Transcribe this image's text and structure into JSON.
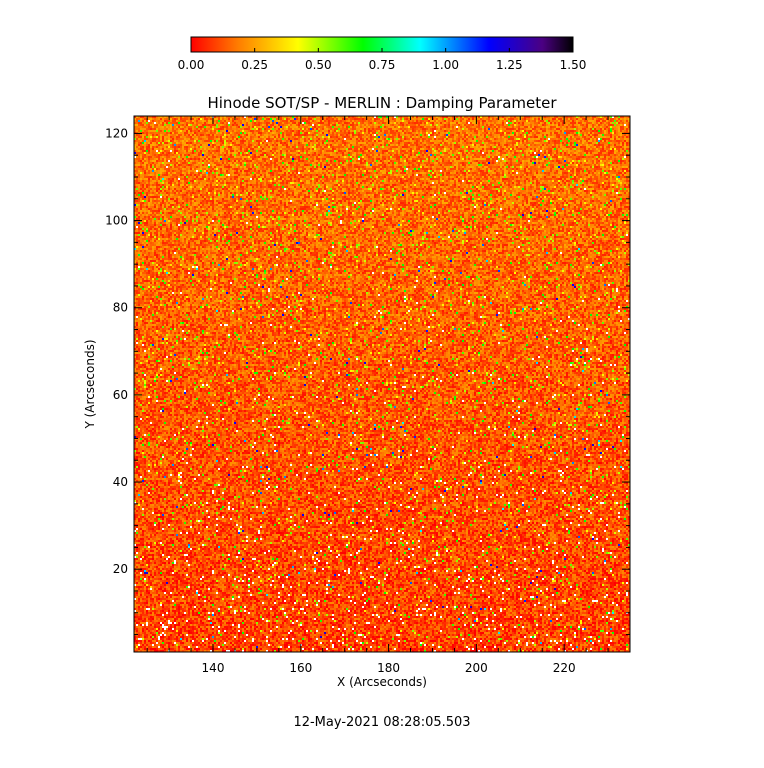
{
  "chart_data": {
    "type": "heatmap",
    "title": "Hinode SOT/SP - MERLIN : Damping Parameter",
    "xlabel": "X (Arcseconds)",
    "ylabel": "Y (Arcseconds)",
    "xlim": [
      122,
      235
    ],
    "ylim": [
      1,
      124
    ],
    "x_ticks": [
      140,
      160,
      180,
      200,
      220
    ],
    "x_tick_labels": [
      "140",
      "160",
      "180",
      "200",
      "220"
    ],
    "y_ticks": [
      20,
      40,
      60,
      80,
      100,
      120
    ],
    "y_tick_labels": [
      "20",
      "40",
      "60",
      "80",
      "100",
      "120"
    ],
    "colorbar": {
      "range": [
        0.0,
        1.5
      ],
      "ticks": [
        0.0,
        0.25,
        0.5,
        0.75,
        1.0,
        1.25,
        1.5
      ],
      "tick_labels": [
        "0.00",
        "0.25",
        "0.50",
        "0.75",
        "1.00",
        "1.25",
        "1.50"
      ],
      "colormap": [
        "#ff0000",
        "#ff8800",
        "#ffff00",
        "#00ff00",
        "#00ffff",
        "#0000ff",
        "#000000"
      ],
      "placement": "top"
    },
    "field": {
      "description_values": "pixel-level noise field; dominant values 0.0-0.3 (red-orange), sparse 0.4-0.7 (yellow/green), rare 1.0-1.3 (cyan/blue), scattered missing pixels (white)",
      "typical_range": [
        0.0,
        0.3
      ],
      "missing_color": "#ffffff"
    },
    "timestamp": "12-May-2021 08:28:05.503"
  }
}
